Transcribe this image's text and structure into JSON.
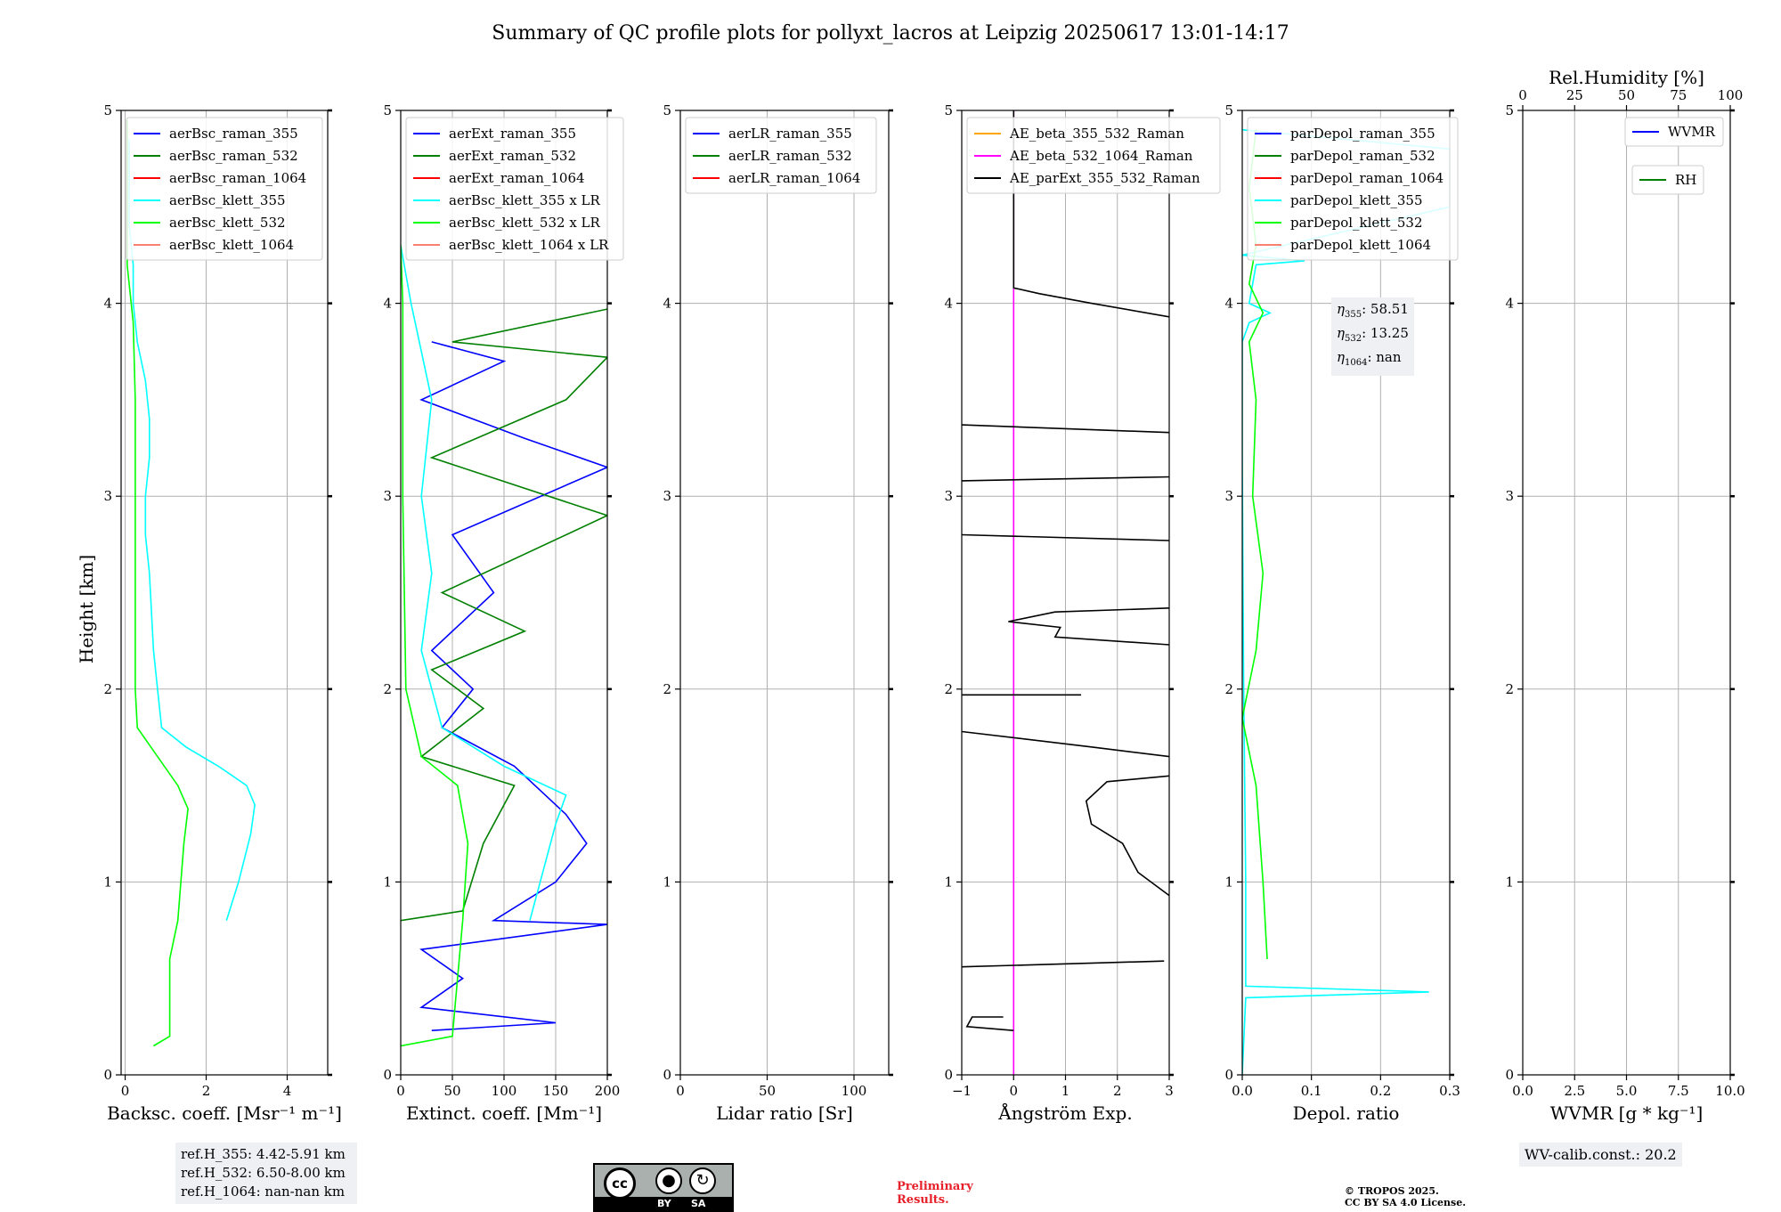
{
  "title": "Summary of QC profile plots for pollyxt_lacros at Leipzig 20250617 13:01-14:17",
  "ylabel": "Height [km]",
  "yticks": [
    "0",
    "1",
    "2",
    "3",
    "4",
    "5"
  ],
  "footer": {
    "refh_lines": [
      "ref.H_355: 4.42-5.91 km",
      "ref.H_532: 6.50-8.00 km",
      "ref.H_1064: nan-nan km"
    ],
    "license_badge": "CC BY SA",
    "badge_by": "BY",
    "badge_sa": "SA",
    "preliminary": [
      "Preliminary",
      "Results."
    ],
    "copyright": [
      "© TROPOS 2025.",
      "CC BY SA 4.0 License."
    ],
    "wv_calib": "WV-calib.const.: 20.2"
  },
  "eta_box": {
    "lines": [
      {
        "sym": "η",
        "sub": "355",
        "val": ": 58.51"
      },
      {
        "sym": "η",
        "sub": "532",
        "val": ": 13.25"
      },
      {
        "sym": "η",
        "sub": "1064",
        "val": ": nan"
      }
    ]
  },
  "colors": {
    "blue": "#0000ff",
    "green": "#008000",
    "red": "#ff0000",
    "cyan": "#00ffff",
    "lime": "#00ff00",
    "salmon": "#fa8072",
    "orange": "#ffa500",
    "magenta": "#ff00ff",
    "black": "#000000"
  },
  "chart_data": [
    {
      "type": "line",
      "xlabel": "Backsc. coeff. [Msr⁻¹ m⁻¹]",
      "xlim": [
        -0.1,
        5
      ],
      "ylim": [
        0,
        5
      ],
      "xticks": [
        "0",
        "2",
        "4"
      ],
      "xtick_values": [
        0,
        2,
        4
      ],
      "legend": [
        "aerBsc_raman_355",
        "aerBsc_raman_532",
        "aerBsc_raman_1064",
        "aerBsc_klett_355",
        "aerBsc_klett_532",
        "aerBsc_klett_1064"
      ],
      "legend_colors": [
        "blue",
        "green",
        "red",
        "cyan",
        "lime",
        "salmon"
      ],
      "series": [
        {
          "color": "cyan",
          "points": [
            [
              2.5,
              0.8
            ],
            [
              2.8,
              1.0
            ],
            [
              3.1,
              1.25
            ],
            [
              3.2,
              1.4
            ],
            [
              3.0,
              1.5
            ],
            [
              2.3,
              1.6
            ],
            [
              1.5,
              1.7
            ],
            [
              0.9,
              1.8
            ],
            [
              0.8,
              2.0
            ],
            [
              0.7,
              2.2
            ],
            [
              0.6,
              2.6
            ],
            [
              0.5,
              2.8
            ],
            [
              0.5,
              3.0
            ],
            [
              0.6,
              3.2
            ],
            [
              0.6,
              3.4
            ],
            [
              0.5,
              3.6
            ],
            [
              0.3,
              3.8
            ],
            [
              0.2,
              4.0
            ],
            [
              0.2,
              4.2
            ],
            [
              0.1,
              4.4
            ],
            [
              0.1,
              4.6
            ],
            [
              0.1,
              4.85
            ]
          ]
        },
        {
          "color": "lime",
          "points": [
            [
              0.7,
              0.15
            ],
            [
              1.1,
              0.2
            ],
            [
              1.1,
              0.4
            ],
            [
              1.1,
              0.6
            ],
            [
              1.3,
              0.8
            ],
            [
              1.45,
              1.2
            ],
            [
              1.55,
              1.38
            ],
            [
              1.3,
              1.5
            ],
            [
              0.8,
              1.65
            ],
            [
              0.3,
              1.8
            ],
            [
              0.25,
              2.0
            ],
            [
              0.25,
              2.5
            ],
            [
              0.25,
              3.0
            ],
            [
              0.25,
              3.5
            ],
            [
              0.2,
              3.9
            ],
            [
              0.05,
              4.2
            ],
            [
              0.05,
              4.5
            ],
            [
              0.05,
              4.95
            ]
          ]
        }
      ]
    },
    {
      "type": "line",
      "xlabel": "Extinct. coeff. [Mm⁻¹]",
      "xlim": [
        0,
        200
      ],
      "ylim": [
        0,
        5
      ],
      "xticks": [
        "0",
        "50",
        "100",
        "150",
        "200"
      ],
      "xtick_values": [
        0,
        50,
        100,
        150,
        200
      ],
      "legend": [
        "aerExt_raman_355",
        "aerExt_raman_532",
        "aerExt_raman_1064",
        "aerBsc_klett_355 x LR",
        "aerBsc_klett_532 x LR",
        "aerBsc_klett_1064 x LR"
      ],
      "legend_colors": [
        "blue",
        "green",
        "red",
        "cyan",
        "lime",
        "salmon"
      ],
      "series": [
        {
          "color": "blue",
          "points": [
            [
              30,
              0.23
            ],
            [
              150,
              0.27
            ],
            [
              20,
              0.35
            ],
            [
              60,
              0.5
            ],
            [
              20,
              0.65
            ],
            [
              200,
              0.78
            ],
            [
              90,
              0.8
            ],
            [
              150,
              1.0
            ],
            [
              180,
              1.2
            ],
            [
              160,
              1.35
            ],
            [
              110,
              1.6
            ],
            [
              40,
              1.8
            ],
            [
              70,
              2.0
            ],
            [
              30,
              2.2
            ],
            [
              90,
              2.5
            ],
            [
              50,
              2.8
            ],
            [
              200,
              3.15
            ],
            [
              120,
              3.3
            ],
            [
              20,
              3.5
            ],
            [
              100,
              3.7
            ],
            [
              30,
              3.8
            ]
          ]
        },
        {
          "color": "green",
          "points": [
            [
              0,
              0.8
            ],
            [
              60,
              0.85
            ],
            [
              80,
              1.2
            ],
            [
              110,
              1.5
            ],
            [
              20,
              1.65
            ],
            [
              80,
              1.9
            ],
            [
              30,
              2.1
            ],
            [
              120,
              2.3
            ],
            [
              40,
              2.5
            ],
            [
              200,
              2.9
            ],
            [
              30,
              3.2
            ],
            [
              160,
              3.5
            ],
            [
              200,
              3.72
            ],
            [
              50,
              3.8
            ],
            [
              200,
              3.97
            ]
          ]
        },
        {
          "color": "cyan",
          "points": [
            [
              125,
              0.8
            ],
            [
              135,
              1.0
            ],
            [
              150,
              1.3
            ],
            [
              160,
              1.45
            ],
            [
              100,
              1.6
            ],
            [
              40,
              1.8
            ],
            [
              30,
              2.0
            ],
            [
              20,
              2.2
            ],
            [
              30,
              2.6
            ],
            [
              20,
              3.0
            ],
            [
              30,
              3.5
            ],
            [
              10,
              4.0
            ],
            [
              0,
              4.3
            ]
          ]
        },
        {
          "color": "lime",
          "points": [
            [
              0,
              0.15
            ],
            [
              50,
              0.2
            ],
            [
              55,
              0.5
            ],
            [
              60,
              0.8
            ],
            [
              65,
              1.2
            ],
            [
              55,
              1.5
            ],
            [
              20,
              1.65
            ],
            [
              5,
              2.0
            ],
            [
              2,
              3.0
            ],
            [
              2,
              4.0
            ],
            [
              0,
              4.3
            ]
          ]
        }
      ]
    },
    {
      "type": "line",
      "xlabel": "Lidar ratio [Sr]",
      "xlim": [
        0,
        120
      ],
      "ylim": [
        0,
        5
      ],
      "xticks": [
        "0",
        "50",
        "100"
      ],
      "xtick_values": [
        0,
        50,
        100
      ],
      "legend": [
        "aerLR_raman_355",
        "aerLR_raman_532",
        "aerLR_raman_1064"
      ],
      "legend_colors": [
        "blue",
        "green",
        "red"
      ],
      "series": []
    },
    {
      "type": "line",
      "xlabel": "Ångström Exp.",
      "xlim": [
        -1,
        3
      ],
      "ylim": [
        0,
        5
      ],
      "xticks": [
        "−1",
        "0",
        "1",
        "2",
        "3"
      ],
      "xtick_values": [
        -1,
        0,
        1,
        2,
        3
      ],
      "legend": [
        "AE_beta_355_532_Raman",
        "AE_beta_532_1064_Raman",
        "AE_parExt_355_532_Raman"
      ],
      "legend_colors": [
        "orange",
        "magenta",
        "black"
      ],
      "series": [
        {
          "color": "magenta",
          "points": [
            [
              0,
              0
            ],
            [
              0,
              5
            ]
          ]
        },
        {
          "color": "black",
          "points": [
            [
              0,
              0.23
            ],
            [
              -0.9,
              0.25
            ],
            [
              -0.8,
              0.3
            ],
            [
              -0.2,
              0.3
            ]
          ]
        },
        {
          "color": "black",
          "points": [
            [
              -1,
              0.56
            ],
            [
              2.9,
              0.59
            ]
          ]
        },
        {
          "color": "black",
          "points": [
            [
              3,
              0.93
            ],
            [
              2.4,
              1.05
            ],
            [
              2.1,
              1.2
            ],
            [
              1.5,
              1.3
            ],
            [
              1.4,
              1.42
            ],
            [
              1.8,
              1.52
            ],
            [
              3,
              1.55
            ]
          ]
        },
        {
          "color": "black",
          "points": [
            [
              3,
              1.65
            ],
            [
              1.5,
              1.7
            ],
            [
              -1,
              1.78
            ]
          ]
        },
        {
          "color": "black",
          "points": [
            [
              -1,
              1.97
            ],
            [
              1.3,
              1.97
            ]
          ]
        },
        {
          "color": "black",
          "points": [
            [
              3,
              2.23
            ],
            [
              0.8,
              2.27
            ],
            [
              0.9,
              2.32
            ],
            [
              -0.1,
              2.35
            ],
            [
              0.8,
              2.4
            ],
            [
              3,
              2.42
            ]
          ]
        },
        {
          "color": "black",
          "points": [
            [
              3,
              2.77
            ],
            [
              -1,
              2.8
            ]
          ]
        },
        {
          "color": "black",
          "points": [
            [
              -1,
              3.08
            ],
            [
              3,
              3.1
            ]
          ]
        },
        {
          "color": "black",
          "points": [
            [
              3,
              3.33
            ],
            [
              -1,
              3.37
            ]
          ]
        },
        {
          "color": "black",
          "points": [
            [
              3,
              3.93
            ],
            [
              1.5,
              4.0
            ],
            [
              0.5,
              4.05
            ],
            [
              0,
              4.08
            ],
            [
              0,
              5
            ]
          ]
        }
      ]
    },
    {
      "type": "line",
      "xlabel": "Depol. ratio",
      "xlim": [
        0,
        0.3
      ],
      "ylim": [
        0,
        5
      ],
      "xticks": [
        "0.0",
        "0.1",
        "0.2",
        "0.3"
      ],
      "xtick_values": [
        0,
        0.1,
        0.2,
        0.3
      ],
      "legend": [
        "parDepol_raman_355",
        "parDepol_raman_532",
        "parDepol_raman_1064",
        "parDepol_klett_355",
        "parDepol_klett_532",
        "parDepol_klett_1064"
      ],
      "legend_colors": [
        "blue",
        "green",
        "red",
        "cyan",
        "lime",
        "salmon"
      ],
      "series": [
        {
          "color": "cyan",
          "points": [
            [
              0.0,
              0
            ],
            [
              0.005,
              0.4
            ],
            [
              0.27,
              0.43
            ],
            [
              0.005,
              0.46
            ],
            [
              0.005,
              1.0
            ],
            [
              0.002,
              2.0
            ],
            [
              0.0,
              3.2
            ],
            [
              0.0,
              3.8
            ],
            [
              0.01,
              3.9
            ],
            [
              0.04,
              3.95
            ],
            [
              0.01,
              4.0
            ],
            [
              0.02,
              4.2
            ],
            [
              0.09,
              4.22
            ],
            [
              0.0,
              4.25
            ],
            [
              0.3,
              4.5
            ],
            [
              0.3,
              4.8
            ],
            [
              0.0,
              4.9
            ]
          ]
        },
        {
          "color": "lime",
          "points": [
            [
              0.036,
              0.6
            ],
            [
              0.03,
              1.0
            ],
            [
              0.02,
              1.5
            ],
            [
              0.0,
              1.85
            ],
            [
              0.02,
              2.2
            ],
            [
              0.03,
              2.6
            ],
            [
              0.015,
              3.0
            ],
            [
              0.02,
              3.5
            ],
            [
              0.01,
              3.8
            ],
            [
              0.03,
              3.95
            ],
            [
              0.01,
              4.1
            ],
            [
              0.02,
              4.3
            ],
            [
              0.01,
              4.6
            ],
            [
              0.02,
              4.9
            ]
          ]
        }
      ]
    },
    {
      "type": "line",
      "xlabel": "WVMR [g * kg⁻¹]",
      "x2label": "Rel.Humidity [%]",
      "xlim": [
        0,
        10
      ],
      "ylim": [
        0,
        5
      ],
      "xticks": [
        "0.0",
        "2.5",
        "5.0",
        "7.5",
        "10.0"
      ],
      "xtick_values": [
        0,
        2.5,
        5,
        7.5,
        10
      ],
      "x2ticks": [
        "0",
        "25",
        "50",
        "75",
        "100"
      ],
      "legend": [
        "WVMR"
      ],
      "legend_colors": [
        "blue"
      ],
      "legend2": [
        "RH"
      ],
      "legend2_colors": [
        "green"
      ],
      "series": []
    }
  ]
}
